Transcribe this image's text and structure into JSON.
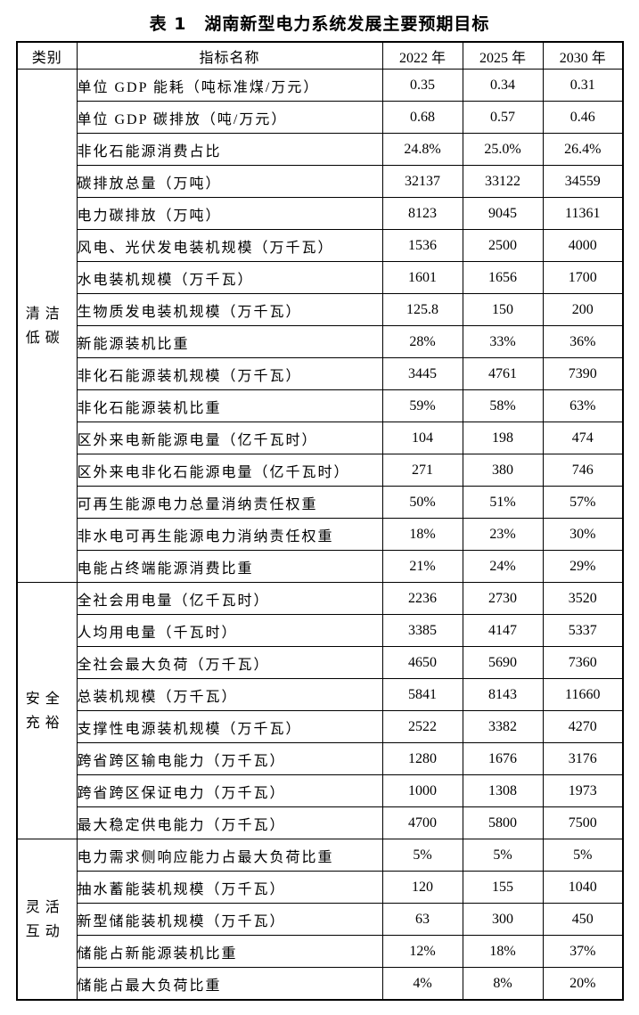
{
  "title": "表 1　湖南新型电力系统发展主要预期目标",
  "table": {
    "headers": {
      "category": "类别",
      "indicator": "指标名称",
      "years": [
        "2022 年",
        "2025 年",
        "2030 年"
      ]
    },
    "sections": [
      {
        "category": "清洁低碳",
        "rows": [
          {
            "indicator": "单位 GDP 能耗（吨标准煤/万元）",
            "values": [
              "0.35",
              "0.34",
              "0.31"
            ]
          },
          {
            "indicator": "单位 GDP 碳排放（吨/万元）",
            "values": [
              "0.68",
              "0.57",
              "0.46"
            ]
          },
          {
            "indicator": "非化石能源消费占比",
            "values": [
              "24.8%",
              "25.0%",
              "26.4%"
            ]
          },
          {
            "indicator": "碳排放总量（万吨）",
            "values": [
              "32137",
              "33122",
              "34559"
            ]
          },
          {
            "indicator": "电力碳排放（万吨）",
            "values": [
              "8123",
              "9045",
              "11361"
            ]
          },
          {
            "indicator": "风电、光伏发电装机规模（万千瓦）",
            "values": [
              "1536",
              "2500",
              "4000"
            ]
          },
          {
            "indicator": "水电装机规模（万千瓦）",
            "values": [
              "1601",
              "1656",
              "1700"
            ]
          },
          {
            "indicator": "生物质发电装机规模（万千瓦）",
            "values": [
              "125.8",
              "150",
              "200"
            ]
          },
          {
            "indicator": "新能源装机比重",
            "values": [
              "28%",
              "33%",
              "36%"
            ]
          },
          {
            "indicator": "非化石能源装机规模（万千瓦）",
            "values": [
              "3445",
              "4761",
              "7390"
            ]
          },
          {
            "indicator": "非化石能源装机比重",
            "values": [
              "59%",
              "58%",
              "63%"
            ]
          },
          {
            "indicator": "区外来电新能源电量（亿千瓦时）",
            "values": [
              "104",
              "198",
              "474"
            ]
          },
          {
            "indicator": "区外来电非化石能源电量（亿千瓦时）",
            "values": [
              "271",
              "380",
              "746"
            ]
          },
          {
            "indicator": "可再生能源电力总量消纳责任权重",
            "values": [
              "50%",
              "51%",
              "57%"
            ]
          },
          {
            "indicator": "非水电可再生能源电力消纳责任权重",
            "values": [
              "18%",
              "23%",
              "30%"
            ]
          },
          {
            "indicator": "电能占终端能源消费比重",
            "values": [
              "21%",
              "24%",
              "29%"
            ]
          }
        ]
      },
      {
        "category": "安全充裕",
        "rows": [
          {
            "indicator": "全社会用电量（亿千瓦时）",
            "values": [
              "2236",
              "2730",
              "3520"
            ]
          },
          {
            "indicator": "人均用电量（千瓦时）",
            "values": [
              "3385",
              "4147",
              "5337"
            ]
          },
          {
            "indicator": "全社会最大负荷（万千瓦）",
            "values": [
              "4650",
              "5690",
              "7360"
            ]
          },
          {
            "indicator": "总装机规模（万千瓦）",
            "values": [
              "5841",
              "8143",
              "11660"
            ]
          },
          {
            "indicator": "支撑性电源装机规模（万千瓦）",
            "values": [
              "2522",
              "3382",
              "4270"
            ]
          },
          {
            "indicator": "跨省跨区输电能力（万千瓦）",
            "values": [
              "1280",
              "1676",
              "3176"
            ]
          },
          {
            "indicator": "跨省跨区保证电力（万千瓦）",
            "values": [
              "1000",
              "1308",
              "1973"
            ]
          },
          {
            "indicator": "最大稳定供电能力（万千瓦）",
            "values": [
              "4700",
              "5800",
              "7500"
            ]
          }
        ]
      },
      {
        "category": "灵活互动",
        "rows": [
          {
            "indicator": "电力需求侧响应能力占最大负荷比重",
            "values": [
              "5%",
              "5%",
              "5%"
            ]
          },
          {
            "indicator": "抽水蓄能装机规模（万千瓦）",
            "values": [
              "120",
              "155",
              "1040"
            ]
          },
          {
            "indicator": "新型储能装机规模（万千瓦）",
            "values": [
              "63",
              "300",
              "450"
            ]
          },
          {
            "indicator": "储能占新能源装机比重",
            "values": [
              "12%",
              "18%",
              "37%"
            ]
          },
          {
            "indicator": "储能占最大负荷比重",
            "values": [
              "4%",
              "8%",
              "20%"
            ]
          }
        ]
      }
    ]
  }
}
